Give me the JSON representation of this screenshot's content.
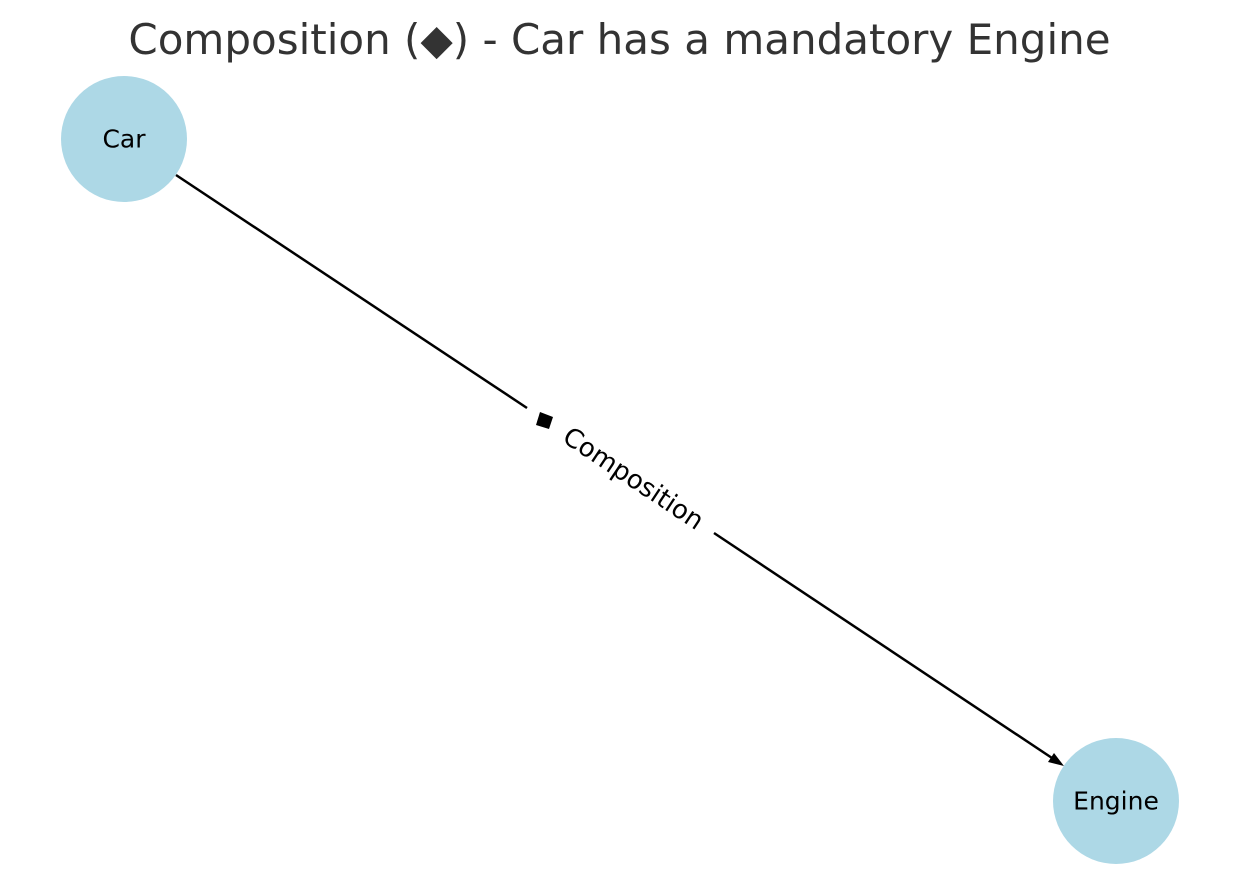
{
  "title": "Composition (◆) - Car has a mandatory Engine",
  "nodes": [
    {
      "id": "car",
      "label": "Car"
    },
    {
      "id": "engine",
      "label": "Engine"
    }
  ],
  "edge": {
    "from": "Car",
    "to": "Engine",
    "label": "Composition",
    "marker_symbol": "diamond-icon",
    "arrow_symbol": "arrowhead-icon"
  },
  "colors": {
    "node_fill": "#add8e6",
    "edge": "#000000",
    "title": "#333333"
  }
}
